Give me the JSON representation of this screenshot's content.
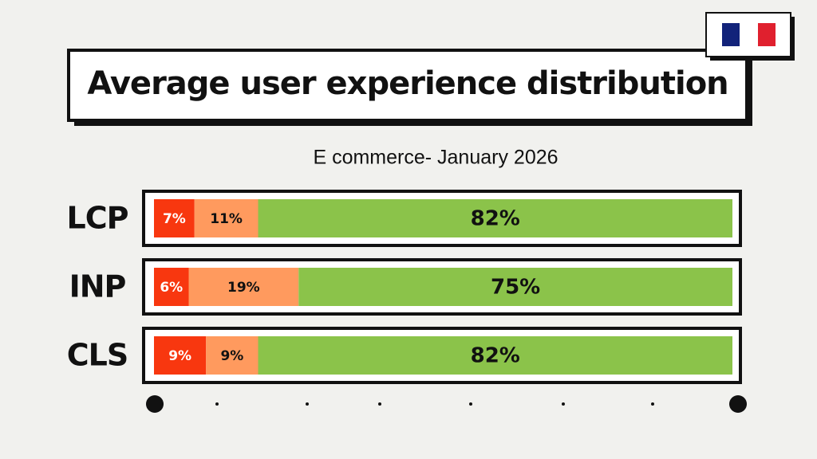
{
  "chart_data": {
    "type": "stacked-hbar",
    "title": "Average user experience distribution",
    "subtitle": "E commerce- January 2026",
    "categories": [
      "LCP",
      "INP",
      "CLS"
    ],
    "xlim": [
      0,
      100
    ],
    "series": [
      {
        "color": "#f8370f",
        "values": [
          7,
          6,
          9
        ],
        "value_labels": [
          "7%",
          "6%",
          "9%"
        ]
      },
      {
        "color": "#ff9a5e",
        "values": [
          11,
          19,
          9
        ],
        "value_labels": [
          "11%",
          "19%",
          "9%"
        ]
      },
      {
        "color": "#8bc34a",
        "values": [
          82,
          75,
          82
        ],
        "value_labels": [
          "82%",
          "75%",
          "82%"
        ]
      }
    ]
  }
}
